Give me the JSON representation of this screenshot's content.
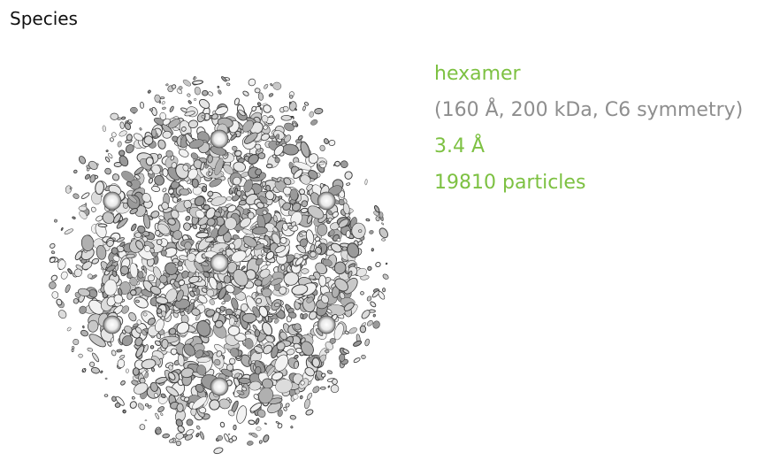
{
  "section": {
    "title": "Species"
  },
  "species": {
    "name": "hexamer",
    "details": "(160 Å, 200 kDa, C6 symmetry)",
    "resolution": "3.4 Å",
    "particles": "19810 particles"
  },
  "map_image": {
    "description_icon": "density-map-icon",
    "symmetry_fold": 6
  },
  "colors": {
    "accent": "#7dc142",
    "muted": "#8e8e8e",
    "title": "#111111"
  }
}
